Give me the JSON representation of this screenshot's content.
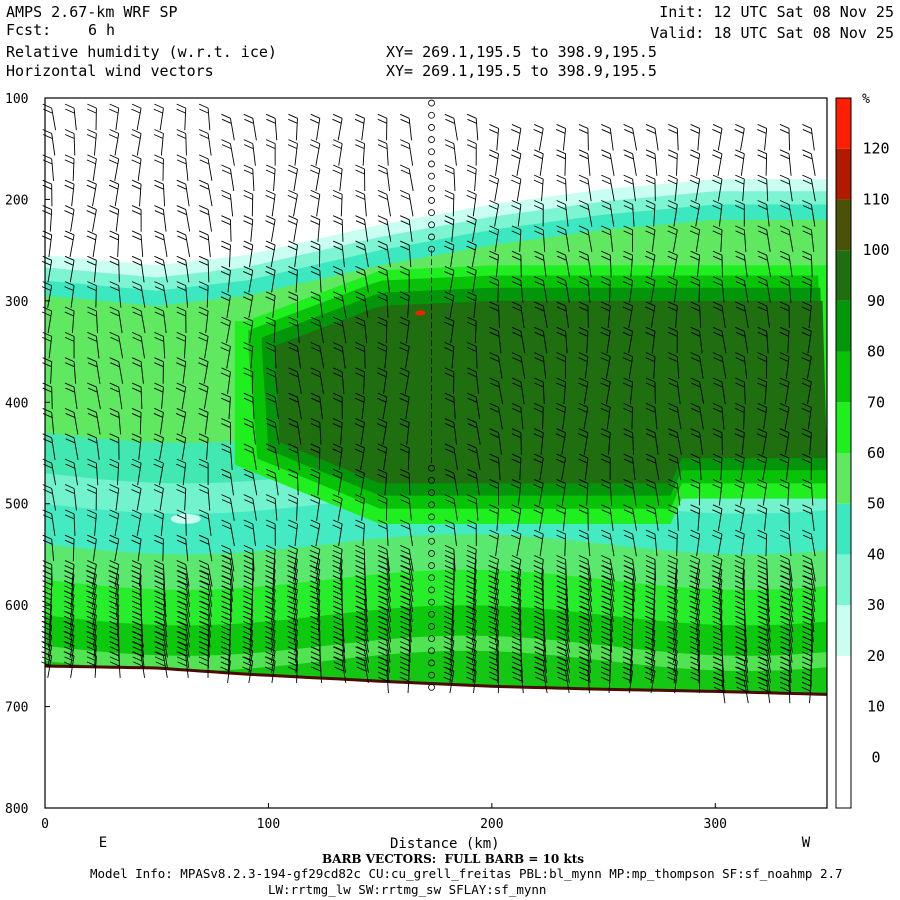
{
  "header": {
    "model": "AMPS 2.67-km WRF SP",
    "fcst_label": "Fcst:",
    "fcst_value": "6 h",
    "field1": "Relative humidity (w.r.t. ice)",
    "field2": "Horizontal wind vectors",
    "xy1": "XY= 269.1,195.5 to 398.9,195.5",
    "xy2": "XY= 269.1,195.5 to 398.9,195.5",
    "init": "Init: 12 UTC Sat 08 Nov 25",
    "valid": "Valid: 18 UTC Sat 08 Nov 25"
  },
  "footer": {
    "barb": "BARB VECTORS:  FULL BARB = 10 kts",
    "model_info": "Model Info: MPASv8.2.3-194-gf29cd82c CU:cu_grell_freitas PBL:bl_mynn MP:mp_thompson SF:sf_noahmp 2.7",
    "model_info2": "LW:rrtmg_lw SW:rrtmg_sw SFLAY:sf_mynn"
  },
  "chart_data": {
    "type": "heatmap",
    "xlabel": "Distance (km)",
    "ylabel": "",
    "xlim": [
      0,
      350
    ],
    "ylim": [
      800,
      100
    ],
    "x_ticks": [
      "0",
      "100",
      "200",
      "300"
    ],
    "y_ticks": [
      "100",
      "200",
      "300",
      "400",
      "500",
      "600",
      "700",
      "800"
    ],
    "direction_left": "E",
    "direction_right": "W",
    "colorbar": {
      "unit": "%",
      "levels": [
        "0",
        "10",
        "20",
        "30",
        "40",
        "50",
        "60",
        "70",
        "80",
        "90",
        "100",
        "110",
        "120"
      ],
      "colors": [
        "#ffffff",
        "#ffffff",
        "#ffffff",
        "#c8fff0",
        "#7df5d2",
        "#3ce8c0",
        "#5fe860",
        "#1fee1f",
        "#08c208",
        "#03960b",
        "#1f6e0f",
        "#4a5207",
        "#b21a00",
        "#ff1e00"
      ]
    },
    "cross_section_rh": [
      {
        "x": 0,
        "rh_30_top_hPa": 255,
        "rh_90_top_hPa": null,
        "surface_hPa": 660
      },
      {
        "x": 50,
        "rh_30_top_hPa": 265,
        "rh_90_top_hPa": null,
        "surface_hPa": 662
      },
      {
        "x": 90,
        "rh_30_top_hPa": 255,
        "rh_90_top_hPa": 340,
        "surface_hPa": 668
      },
      {
        "x": 150,
        "rh_30_top_hPa": 225,
        "rh_90_top_hPa": 290,
        "surface_hPa": 675
      },
      {
        "x": 200,
        "rh_30_top_hPa": 205,
        "rh_90_top_hPa": 285,
        "surface_hPa": 680
      },
      {
        "x": 250,
        "rh_30_top_hPa": 190,
        "rh_90_top_hPa": 285,
        "surface_hPa": 683
      },
      {
        "x": 300,
        "rh_30_top_hPa": 180,
        "rh_90_top_hPa": 285,
        "surface_hPa": 685
      },
      {
        "x": 350,
        "rh_30_top_hPa": 180,
        "rh_90_top_hPa": 285,
        "surface_hPa": 688
      }
    ],
    "max_rh_region": {
      "x": 168,
      "p_hPa": 312,
      "rh": 120
    }
  }
}
